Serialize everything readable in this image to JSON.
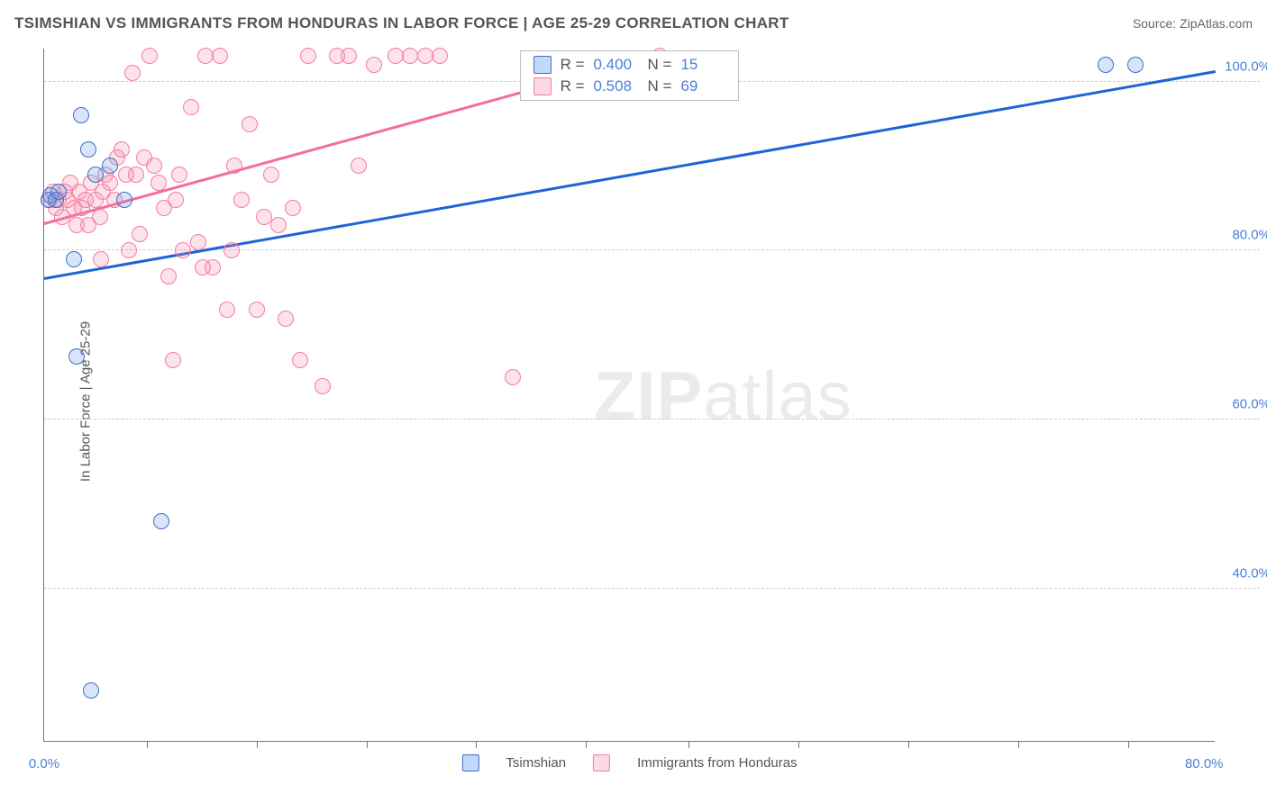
{
  "title": "TSIMSHIAN VS IMMIGRANTS FROM HONDURAS IN LABOR FORCE | AGE 25-29 CORRELATION CHART",
  "source": "Source: ZipAtlas.com",
  "yaxis_title": "In Labor Force | Age 25-29",
  "watermark_bold": "ZIP",
  "watermark_thin": "atlas",
  "chart": {
    "type": "scatter",
    "xlim": [
      0,
      80
    ],
    "ylim": [
      22,
      104
    ],
    "xtick_labels": [
      "0.0%",
      "80.0%"
    ],
    "xtick_positions": [
      0,
      80
    ],
    "xtick_minors": [
      7,
      14.5,
      22,
      29.5,
      37,
      44,
      51.5,
      59,
      66.5,
      74
    ],
    "ytick_labels": [
      "40.0%",
      "60.0%",
      "80.0%",
      "100.0%"
    ],
    "ytick_positions": [
      40,
      60,
      80,
      100
    ],
    "grid_color": "#cccccc",
    "axis_color": "#777777",
    "background_color": "#ffffff",
    "marker_size": 18,
    "series": [
      {
        "name": "Tsimshian",
        "color_fill": "rgba(100,150,230,0.25)",
        "color_stroke": "#3b6fc8",
        "R": "0.400",
        "N": "15",
        "trend": {
          "x1": 0,
          "y1": 76.5,
          "x2": 80,
          "y2": 101,
          "color": "#1f63d6",
          "width": 3
        },
        "points": [
          [
            0.3,
            86
          ],
          [
            0.4,
            86.5
          ],
          [
            0.8,
            86
          ],
          [
            1.0,
            87
          ],
          [
            2.0,
            79
          ],
          [
            2.2,
            67.5
          ],
          [
            2.5,
            96
          ],
          [
            3.0,
            92
          ],
          [
            3.5,
            89
          ],
          [
            4.5,
            90
          ],
          [
            8.0,
            48
          ],
          [
            3.2,
            28
          ],
          [
            72.5,
            102
          ],
          [
            74.5,
            102
          ],
          [
            5.5,
            86
          ]
        ]
      },
      {
        "name": "Immigrants from Honduras",
        "color_fill": "rgba(245,140,170,0.25)",
        "color_stroke": "#f57ba0",
        "R": "0.508",
        "N": "69",
        "trend": {
          "x1": 0,
          "y1": 83,
          "x2": 42,
          "y2": 103,
          "color": "#f56e95",
          "width": 3
        },
        "points": [
          [
            0.3,
            86
          ],
          [
            0.6,
            87
          ],
          [
            0.8,
            85
          ],
          [
            1.0,
            86
          ],
          [
            1.2,
            84
          ],
          [
            1.4,
            87
          ],
          [
            1.6,
            86
          ],
          [
            1.8,
            88
          ],
          [
            2.0,
            85
          ],
          [
            2.2,
            83
          ],
          [
            2.4,
            87
          ],
          [
            2.6,
            85
          ],
          [
            2.8,
            86
          ],
          [
            3.0,
            83
          ],
          [
            3.2,
            88
          ],
          [
            3.5,
            86
          ],
          [
            3.8,
            84
          ],
          [
            4.0,
            87
          ],
          [
            4.2,
            89
          ],
          [
            4.5,
            88
          ],
          [
            4.8,
            86
          ],
          [
            5.0,
            91
          ],
          [
            5.3,
            92
          ],
          [
            5.6,
            89
          ],
          [
            6.0,
            101
          ],
          [
            6.3,
            89
          ],
          [
            6.8,
            91
          ],
          [
            7.2,
            103
          ],
          [
            7.5,
            90
          ],
          [
            7.8,
            88
          ],
          [
            8.2,
            85
          ],
          [
            8.5,
            77
          ],
          [
            8.8,
            67
          ],
          [
            9.2,
            89
          ],
          [
            9.5,
            80
          ],
          [
            10.0,
            97
          ],
          [
            10.5,
            81
          ],
          [
            11.0,
            103
          ],
          [
            11.5,
            78
          ],
          [
            12.0,
            103
          ],
          [
            12.5,
            73
          ],
          [
            13.0,
            90
          ],
          [
            13.5,
            86
          ],
          [
            14.0,
            95
          ],
          [
            14.5,
            73
          ],
          [
            15.0,
            84
          ],
          [
            15.5,
            89
          ],
          [
            16.0,
            83
          ],
          [
            16.5,
            72
          ],
          [
            17.0,
            85
          ],
          [
            17.5,
            67
          ],
          [
            18.0,
            103
          ],
          [
            19.0,
            64
          ],
          [
            20.0,
            103
          ],
          [
            20.8,
            103
          ],
          [
            21.5,
            90
          ],
          [
            22.5,
            102
          ],
          [
            24.0,
            103
          ],
          [
            25.0,
            103
          ],
          [
            26.0,
            103
          ],
          [
            27.0,
            103
          ],
          [
            32.0,
            65
          ],
          [
            42.0,
            103
          ],
          [
            10.8,
            78
          ],
          [
            5.8,
            80
          ],
          [
            6.5,
            82
          ],
          [
            3.9,
            79
          ],
          [
            9.0,
            86
          ],
          [
            12.8,
            80
          ]
        ]
      }
    ]
  },
  "legend_bottom": [
    {
      "label": "Tsimshian",
      "swatch": "blue"
    },
    {
      "label": "Immigrants from Honduras",
      "swatch": "pink"
    }
  ],
  "R_label": "R =",
  "N_label": "N ="
}
